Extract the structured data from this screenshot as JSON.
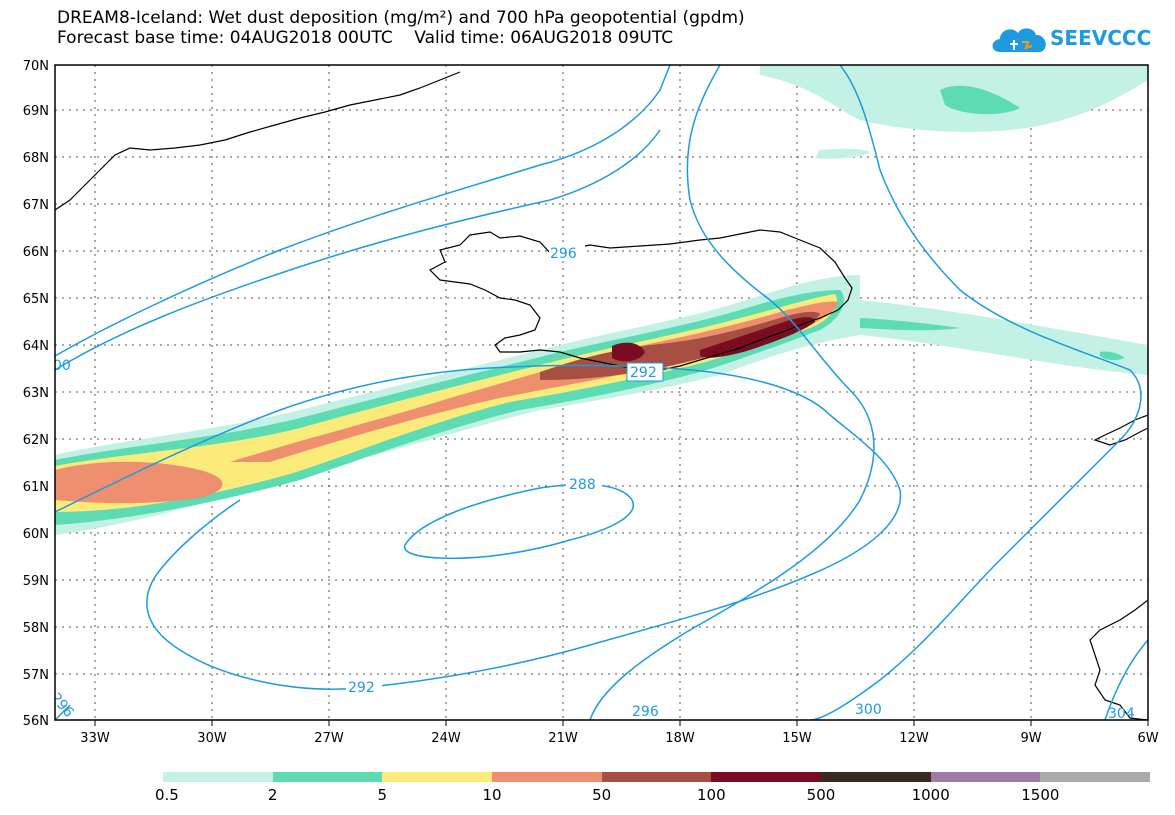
{
  "title": {
    "line1": "DREAM8-Iceland: Wet dust deposition (mg/m²) and 700 hPa geopotential (gpdm)",
    "line2": "Forecast base time: 04AUG2018 00UTC    Valid time: 06AUG2018 09UTC"
  },
  "logo": {
    "text": "SEEVCCC",
    "icon": "cloud-logo-icon",
    "color": "#1e9be0"
  },
  "map": {
    "lat_labels": [
      "56N",
      "57N",
      "58N",
      "59N",
      "60N",
      "61N",
      "62N",
      "63N",
      "64N",
      "65N",
      "66N",
      "67N",
      "68N",
      "69N",
      "70N"
    ],
    "lon_labels": [
      "33W",
      "30W",
      "27W",
      "24W",
      "21W",
      "18W",
      "15W",
      "12W",
      "9W",
      "6W"
    ],
    "contour_labels": [
      "296",
      "292",
      "288",
      "292",
      "296",
      "300",
      "304",
      "296",
      "00"
    ],
    "contour_color": "#1e9be0"
  },
  "legend": {
    "labels": [
      "0.5",
      "2",
      "5",
      "10",
      "50",
      "100",
      "500",
      "1000",
      "1500"
    ],
    "colors": [
      "#c3f1e6",
      "#5ddcb4",
      "#fbeb7a",
      "#ee9070",
      "#a64f42",
      "#7a0c22",
      "#3a2a1e",
      "#9f7aa9",
      "#aaaaaa"
    ]
  }
}
